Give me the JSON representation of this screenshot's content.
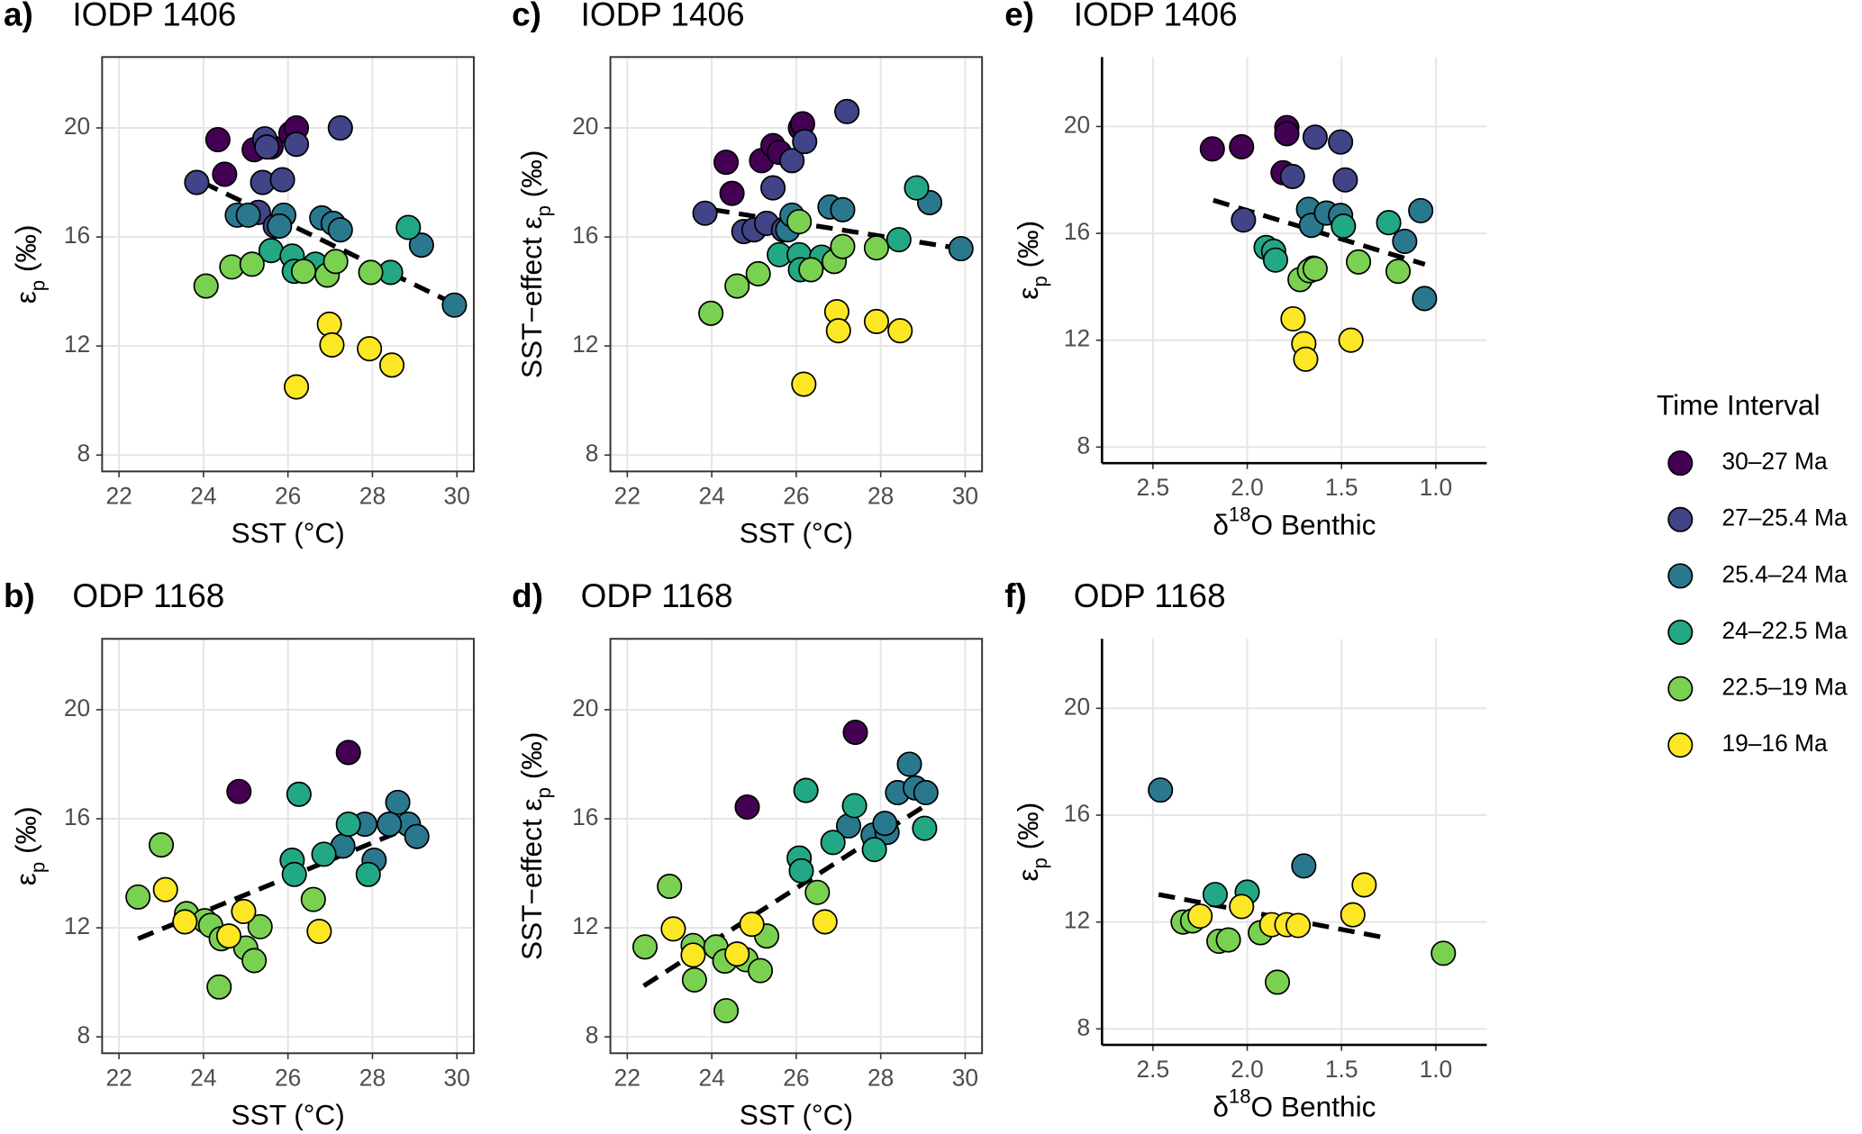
{
  "chart_data": [
    {
      "type": "scatter",
      "panel": "a)",
      "title": "IODP 1406",
      "xlabel": [
        {
          "text": "SST (°C)"
        }
      ],
      "ylabel": [
        {
          "text": "ε"
        },
        {
          "text": "p",
          "shift": "sub"
        },
        {
          "text": " (‰)"
        }
      ],
      "xlim": [
        21.6,
        30.4
      ],
      "ylim": [
        7.4,
        22.6
      ],
      "xticks": [
        22,
        24,
        26,
        28,
        30
      ],
      "yticks": [
        8,
        12,
        16,
        20
      ],
      "grid": true,
      "groups": [
        {
          "x": [
            24.34,
            24.5,
            25.2,
            25.6,
            26.07,
            26.2
          ],
          "y": [
            19.57,
            18.3,
            19.2,
            19.3,
            19.8,
            20.0
          ]
        },
        {
          "x": [
            23.84,
            25.45,
            25.5,
            26.2,
            27.24,
            25.4,
            25.87,
            25.3,
            25.7
          ],
          "y": [
            18.0,
            19.6,
            19.3,
            19.4,
            20.0,
            18.0,
            18.1,
            16.9,
            16.4
          ]
        },
        {
          "x": [
            24.8,
            25.06,
            25.9,
            25.8,
            26.8,
            27.07,
            27.24,
            29.16,
            29.94
          ],
          "y": [
            16.8,
            16.8,
            16.8,
            16.4,
            16.7,
            16.5,
            16.26,
            15.7,
            13.5
          ]
        },
        {
          "x": [
            25.6,
            26.1,
            28.85,
            28.43,
            26.65,
            26.15
          ],
          "y": [
            15.5,
            15.3,
            16.35,
            14.7,
            15.0,
            14.74
          ]
        },
        {
          "x": [
            24.06,
            24.67,
            25.15,
            26.37,
            26.93,
            27.13,
            27.96
          ],
          "y": [
            14.2,
            14.9,
            15.0,
            14.74,
            14.6,
            15.1,
            14.7
          ]
        },
        {
          "x": [
            26.98,
            27.04,
            27.93,
            28.46,
            26.2
          ],
          "y": [
            12.8,
            12.04,
            11.9,
            11.3,
            10.5
          ]
        }
      ],
      "trend": {
        "x": [
          23.98,
          30.0
        ],
        "y": [
          18.0,
          13.5
        ]
      }
    },
    {
      "type": "scatter",
      "panel": "b)",
      "title": "ODP 1168",
      "xlabel": [
        {
          "text": "SST (°C)"
        }
      ],
      "ylabel": [
        {
          "text": "ε"
        },
        {
          "text": "p",
          "shift": "sub"
        },
        {
          "text": " (‰)"
        }
      ],
      "xlim": [
        21.6,
        30.4
      ],
      "ylim": [
        7.4,
        22.6
      ],
      "xticks": [
        22,
        24,
        26,
        28,
        30
      ],
      "yticks": [
        8,
        12,
        16,
        20
      ],
      "grid": true,
      "groups": [
        {
          "x": [
            24.84,
            27.43
          ],
          "y": [
            17.0,
            18.43
          ]
        },
        {
          "x": [],
          "y": []
        },
        {
          "x": [
            27.3,
            27.82,
            28.04,
            28.6,
            28.85,
            29.05,
            28.4
          ],
          "y": [
            15.0,
            15.8,
            14.48,
            16.6,
            15.8,
            15.35,
            15.8
          ]
        },
        {
          "x": [
            26.26,
            26.1,
            26.15,
            27.43,
            26.85,
            27.9
          ],
          "y": [
            16.9,
            14.48,
            13.96,
            15.8,
            14.7,
            13.96
          ]
        },
        {
          "x": [
            22.45,
            23.0,
            23.6,
            24.03,
            24.17,
            24.42,
            24.37,
            25.0,
            25.2,
            25.34,
            26.6
          ],
          "y": [
            13.13,
            15.04,
            12.52,
            12.26,
            12.09,
            11.6,
            9.83,
            11.26,
            10.8,
            12.04,
            13.04
          ]
        },
        {
          "x": [
            23.1,
            23.56,
            24.6,
            24.95,
            26.74
          ],
          "y": [
            13.4,
            12.22,
            11.7,
            12.6,
            11.87
          ]
        }
      ],
      "trend": {
        "x": [
          22.45,
          28.6
        ],
        "y": [
          11.6,
          15.5
        ]
      }
    },
    {
      "type": "scatter",
      "panel": "c)",
      "title": "IODP 1406",
      "xlabel": [
        {
          "text": "SST (°C)"
        }
      ],
      "ylabel": [
        {
          "text": "SST−effect ε"
        },
        {
          "text": "p",
          "shift": "sub"
        },
        {
          "text": " (‰)"
        }
      ],
      "xlim": [
        21.6,
        30.4
      ],
      "ylim": [
        7.4,
        22.6
      ],
      "xticks": [
        22,
        24,
        26,
        28,
        30
      ],
      "yticks": [
        8,
        12,
        16,
        20
      ],
      "grid": true,
      "groups": [
        {
          "x": [
            24.34,
            24.48,
            25.18,
            25.45,
            25.6,
            26.1,
            26.15
          ],
          "y": [
            18.74,
            17.6,
            18.8,
            19.35,
            19.1,
            20.0,
            20.15
          ]
        },
        {
          "x": [
            23.84,
            25.45,
            25.9,
            26.2,
            27.2,
            24.76,
            25.0,
            25.3,
            25.7
          ],
          "y": [
            16.87,
            17.8,
            18.8,
            19.5,
            20.6,
            16.2,
            16.26,
            16.5,
            16.26
          ]
        },
        {
          "x": [
            25.8,
            25.9,
            26.8,
            27.1,
            29.16,
            29.9
          ],
          "y": [
            16.26,
            16.8,
            17.1,
            17.0,
            17.26,
            15.57
          ]
        },
        {
          "x": [
            25.6,
            26.07,
            26.6,
            28.85,
            28.43,
            26.1
          ],
          "y": [
            15.35,
            15.35,
            15.26,
            17.8,
            15.9,
            14.8
          ]
        },
        {
          "x": [
            23.98,
            24.6,
            25.1,
            26.07,
            26.35,
            26.9,
            27.1,
            27.9
          ],
          "y": [
            13.2,
            14.2,
            14.65,
            16.56,
            14.8,
            15.1,
            15.65,
            15.6
          ]
        },
        {
          "x": [
            26.96,
            27.0,
            27.9,
            28.46,
            26.18
          ],
          "y": [
            13.26,
            12.56,
            12.9,
            12.56,
            10.6
          ]
        }
      ],
      "trend": {
        "x": [
          24.03,
          29.9
        ],
        "y": [
          17.0,
          15.57
        ]
      }
    },
    {
      "type": "scatter",
      "panel": "d)",
      "title": "ODP 1168",
      "xlabel": [
        {
          "text": "SST (°C)"
        }
      ],
      "ylabel": [
        {
          "text": "SST−effect ε"
        },
        {
          "text": "p",
          "shift": "sub"
        },
        {
          "text": " (‰)"
        }
      ],
      "xlim": [
        21.6,
        30.4
      ],
      "ylim": [
        7.4,
        22.6
      ],
      "xticks": [
        22,
        24,
        26,
        28,
        30
      ],
      "yticks": [
        8,
        12,
        16,
        20
      ],
      "grid": true,
      "groups": [
        {
          "x": [
            24.84,
            27.4
          ],
          "y": [
            16.43,
            19.17
          ]
        },
        {
          "x": [],
          "y": []
        },
        {
          "x": [
            27.24,
            27.82,
            28.15,
            28.4,
            28.68,
            28.82,
            29.07,
            28.1
          ],
          "y": [
            15.74,
            15.4,
            15.5,
            16.96,
            18.0,
            17.13,
            16.96,
            15.83
          ]
        },
        {
          "x": [
            26.23,
            26.07,
            26.12,
            27.38,
            26.87,
            27.85,
            29.04
          ],
          "y": [
            17.04,
            14.56,
            14.09,
            16.48,
            15.13,
            14.87,
            15.65
          ]
        },
        {
          "x": [
            22.42,
            23.0,
            23.56,
            23.59,
            24.1,
            24.34,
            24.31,
            24.81,
            25.15,
            25.3,
            26.5
          ],
          "y": [
            11.3,
            13.52,
            11.35,
            10.09,
            11.3,
            8.96,
            10.78,
            10.83,
            10.43,
            11.7,
            13.3
          ]
        },
        {
          "x": [
            23.09,
            23.56,
            24.6,
            24.95,
            26.68
          ],
          "y": [
            11.96,
            11.0,
            11.04,
            12.13,
            12.22
          ]
        }
      ],
      "trend": {
        "x": [
          22.39,
          29.05
        ],
        "y": [
          9.87,
          16.48
        ]
      }
    },
    {
      "type": "scatter",
      "panel": "e)",
      "title": "IODP 1406",
      "xlabel": [
        {
          "text": "δ"
        },
        {
          "text": "18",
          "shift": "super"
        },
        {
          "text": "O Benthic"
        }
      ],
      "ylabel": [
        {
          "text": "ε"
        },
        {
          "text": "p",
          "shift": "sub"
        },
        {
          "text": " (‰)"
        }
      ],
      "xlim": [
        2.77,
        0.73
      ],
      "ylim": [
        7.4,
        22.6
      ],
      "xticks": [
        2.5,
        {
          "value": 2,
          "label": "2.0"
        },
        1.5,
        {
          "value": 1,
          "label": "1.0"
        }
      ],
      "yticks": [
        8,
        12,
        16,
        20
      ],
      "grid": true,
      "groups": [
        {
          "x": [
            2.185,
            2.03,
            1.79,
            1.79,
            1.81
          ],
          "y": [
            19.16,
            19.24,
            19.96,
            19.73,
            18.27
          ]
        },
        {
          "x": [
            2.02,
            1.76,
            1.64,
            1.505,
            1.48
          ],
          "y": [
            16.5,
            18.13,
            19.6,
            19.42,
            18.0
          ]
        },
        {
          "x": [
            1.675,
            1.66,
            1.58,
            1.505,
            1.08,
            1.165,
            1.06
          ],
          "y": [
            16.9,
            16.3,
            16.76,
            16.67,
            16.85,
            15.7,
            13.56
          ]
        },
        {
          "x": [
            1.9,
            1.86,
            1.85,
            1.65,
            1.49,
            1.25
          ],
          "y": [
            15.47,
            15.33,
            15.0,
            14.7,
            16.27,
            16.4
          ]
        },
        {
          "x": [
            1.72,
            1.67,
            1.64,
            1.41,
            1.2
          ],
          "y": [
            14.27,
            14.6,
            14.67,
            14.93,
            14.58
          ]
        },
        {
          "x": [
            1.757,
            1.7,
            1.69,
            1.45
          ],
          "y": [
            12.8,
            11.87,
            11.29,
            12.0
          ]
        }
      ],
      "trend": {
        "x": [
          2.18,
          1.058
        ],
        "y": [
          17.24,
          14.84
        ]
      }
    },
    {
      "type": "scatter",
      "panel": "f)",
      "title": "ODP 1168",
      "xlabel": [
        {
          "text": "δ"
        },
        {
          "text": "18",
          "shift": "super"
        },
        {
          "text": "O Benthic"
        }
      ],
      "ylabel": [
        {
          "text": "ε"
        },
        {
          "text": "p",
          "shift": "sub"
        },
        {
          "text": " (‰)"
        }
      ],
      "xlim": [
        2.77,
        0.73
      ],
      "ylim": [
        7.4,
        22.6
      ],
      "xticks": [
        2.5,
        {
          "value": 2,
          "label": "2.0"
        },
        1.5,
        {
          "value": 1,
          "label": "1.0"
        }
      ],
      "yticks": [
        8,
        12,
        16,
        20
      ],
      "grid": true,
      "groups": [
        {
          "x": [],
          "y": []
        },
        {
          "x": [],
          "y": []
        },
        {
          "x": [
            2.46,
            1.7
          ],
          "y": [
            16.94,
            14.1
          ]
        },
        {
          "x": [
            2.17,
            2.0
          ],
          "y": [
            13.03,
            13.12
          ]
        },
        {
          "x": [
            2.34,
            2.29,
            2.15,
            2.1,
            1.93,
            1.84,
            0.96
          ],
          "y": [
            12.0,
            12.04,
            11.28,
            11.33,
            11.6,
            9.75,
            10.83
          ]
        },
        {
          "x": [
            2.25,
            2.03,
            1.87,
            1.79,
            1.73,
            1.44,
            1.38
          ],
          "y": [
            12.22,
            12.58,
            11.9,
            11.9,
            11.87,
            12.27,
            13.39
          ]
        }
      ],
      "trend": {
        "x": [
          2.47,
          1.26
        ],
        "y": [
          13.03,
          11.4
        ]
      }
    }
  ],
  "legend": {
    "title": "Time Interval",
    "items": [
      {
        "name": "30–27 Ma",
        "color": "#440154"
      },
      {
        "name": "27–25.4 Ma",
        "color": "#414487"
      },
      {
        "name": "25.4–24 Ma",
        "color": "#2a788e"
      },
      {
        "name": "24–22.5 Ma",
        "color": "#22a884"
      },
      {
        "name": "22.5–19 Ma",
        "color": "#7ad151"
      },
      {
        "name": "19–16 Ma",
        "color": "#fde725"
      }
    ]
  }
}
